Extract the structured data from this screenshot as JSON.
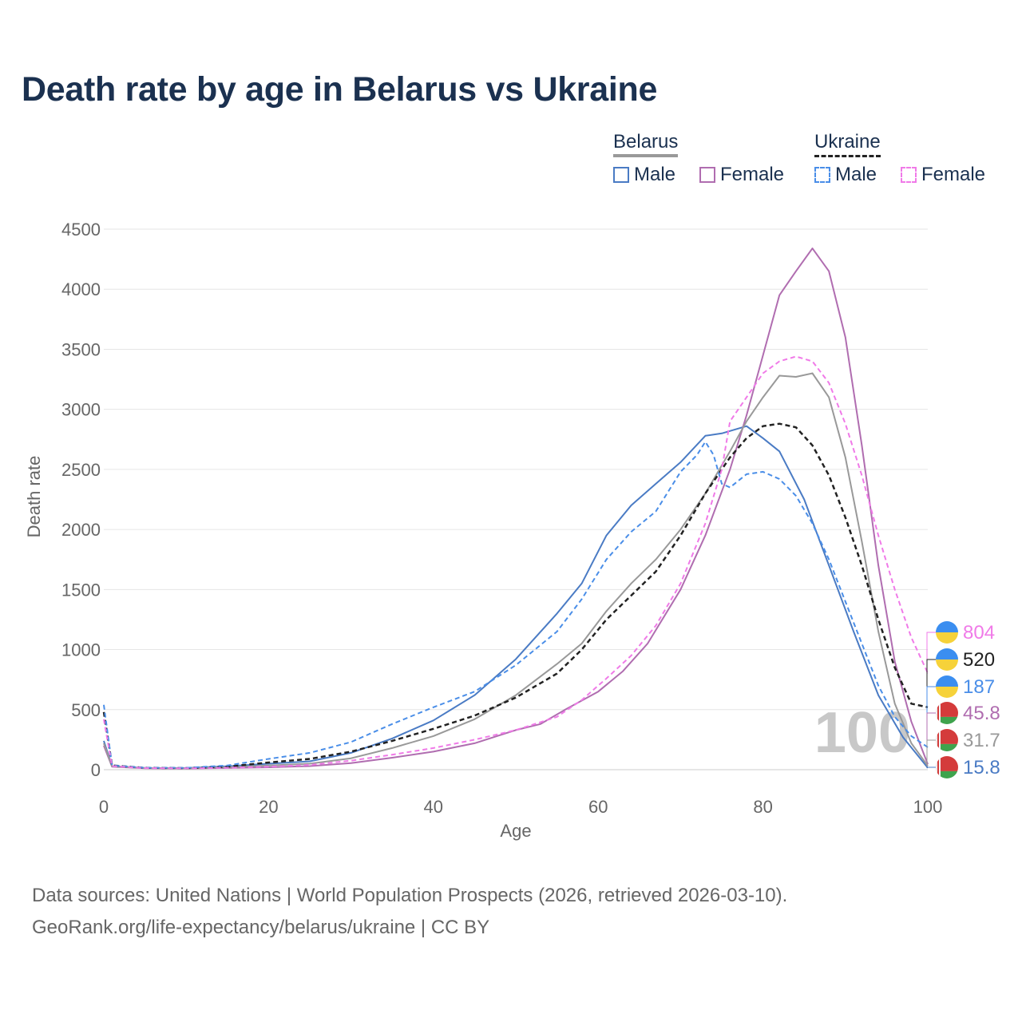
{
  "title": "Death rate by age in Belarus vs Ukraine",
  "legend": {
    "groups": [
      {
        "name": "Belarus",
        "line_color": "#999999",
        "dash": "solid"
      },
      {
        "name": "Ukraine",
        "line_color": "#222222",
        "dash": "dashed"
      }
    ],
    "items": [
      {
        "label": "Male",
        "color": "#4a7bc4",
        "dash": "solid"
      },
      {
        "label": "Female",
        "color": "#b06db0",
        "dash": "solid"
      },
      {
        "label": "Male",
        "color": "#4a8ee8",
        "dash": "dashed"
      },
      {
        "label": "Female",
        "color": "#f07ae8",
        "dash": "dashed"
      }
    ]
  },
  "chart_data": {
    "type": "line",
    "title": "Death rate by age in Belarus vs Ukraine",
    "xlabel": "Age",
    "ylabel": "Death rate",
    "xlim": [
      0,
      100
    ],
    "ylim": [
      0,
      4500
    ],
    "xticks": [
      0,
      20,
      40,
      60,
      80,
      100
    ],
    "yticks": [
      0,
      500,
      1000,
      1500,
      2000,
      2500,
      3000,
      3500,
      4000,
      4500
    ],
    "grid": true,
    "watermark": "100",
    "series": [
      {
        "name": "Belarus Male",
        "color": "#4a7bc4",
        "dash": "solid",
        "points": [
          [
            0,
            240
          ],
          [
            1,
            30
          ],
          [
            5,
            15
          ],
          [
            10,
            14
          ],
          [
            15,
            28
          ],
          [
            20,
            50
          ],
          [
            25,
            70
          ],
          [
            30,
            140
          ],
          [
            35,
            260
          ],
          [
            40,
            410
          ],
          [
            45,
            620
          ],
          [
            50,
            920
          ],
          [
            55,
            1300
          ],
          [
            58,
            1550
          ],
          [
            61,
            1950
          ],
          [
            64,
            2200
          ],
          [
            67,
            2380
          ],
          [
            70,
            2560
          ],
          [
            73,
            2780
          ],
          [
            75,
            2800
          ],
          [
            78,
            2860
          ],
          [
            80,
            2760
          ],
          [
            82,
            2650
          ],
          [
            85,
            2250
          ],
          [
            88,
            1700
          ],
          [
            91,
            1150
          ],
          [
            94,
            620
          ],
          [
            97,
            270
          ],
          [
            100,
            15.8
          ]
        ]
      },
      {
        "name": "Belarus Female",
        "color": "#b06db0",
        "dash": "solid",
        "points": [
          [
            0,
            200
          ],
          [
            1,
            25
          ],
          [
            5,
            12
          ],
          [
            10,
            10
          ],
          [
            15,
            14
          ],
          [
            20,
            20
          ],
          [
            25,
            30
          ],
          [
            30,
            55
          ],
          [
            35,
            100
          ],
          [
            40,
            150
          ],
          [
            45,
            220
          ],
          [
            50,
            330
          ],
          [
            53,
            380
          ],
          [
            56,
            500
          ],
          [
            60,
            650
          ],
          [
            63,
            820
          ],
          [
            66,
            1050
          ],
          [
            70,
            1500
          ],
          [
            73,
            1950
          ],
          [
            76,
            2500
          ],
          [
            78,
            2950
          ],
          [
            80,
            3450
          ],
          [
            82,
            3950
          ],
          [
            84,
            4150
          ],
          [
            86,
            4340
          ],
          [
            88,
            4150
          ],
          [
            90,
            3600
          ],
          [
            92,
            2700
          ],
          [
            94,
            1700
          ],
          [
            96,
            900
          ],
          [
            98,
            400
          ],
          [
            100,
            45.8
          ]
        ]
      },
      {
        "name": "Belarus Total",
        "color": "#999999",
        "dash": "solid",
        "points": [
          [
            0,
            220
          ],
          [
            1,
            28
          ],
          [
            5,
            13
          ],
          [
            10,
            12
          ],
          [
            15,
            20
          ],
          [
            20,
            35
          ],
          [
            25,
            50
          ],
          [
            30,
            95
          ],
          [
            35,
            180
          ],
          [
            40,
            280
          ],
          [
            45,
            420
          ],
          [
            50,
            620
          ],
          [
            55,
            880
          ],
          [
            58,
            1050
          ],
          [
            61,
            1320
          ],
          [
            64,
            1550
          ],
          [
            67,
            1750
          ],
          [
            70,
            2000
          ],
          [
            73,
            2300
          ],
          [
            76,
            2650
          ],
          [
            78,
            2900
          ],
          [
            80,
            3100
          ],
          [
            82,
            3280
          ],
          [
            84,
            3270
          ],
          [
            86,
            3300
          ],
          [
            88,
            3100
          ],
          [
            90,
            2600
          ],
          [
            92,
            1900
          ],
          [
            94,
            1150
          ],
          [
            96,
            550
          ],
          [
            98,
            220
          ],
          [
            100,
            31.7
          ]
        ]
      },
      {
        "name": "Ukraine Total",
        "color": "#222222",
        "dash": "dashed",
        "points": [
          [
            0,
            480
          ],
          [
            1,
            35
          ],
          [
            5,
            15
          ],
          [
            10,
            13
          ],
          [
            15,
            25
          ],
          [
            20,
            60
          ],
          [
            25,
            90
          ],
          [
            30,
            150
          ],
          [
            35,
            240
          ],
          [
            40,
            340
          ],
          [
            45,
            450
          ],
          [
            50,
            600
          ],
          [
            55,
            800
          ],
          [
            58,
            1000
          ],
          [
            61,
            1250
          ],
          [
            64,
            1450
          ],
          [
            67,
            1650
          ],
          [
            70,
            1950
          ],
          [
            73,
            2300
          ],
          [
            76,
            2600
          ],
          [
            78,
            2760
          ],
          [
            80,
            2860
          ],
          [
            82,
            2880
          ],
          [
            84,
            2850
          ],
          [
            86,
            2700
          ],
          [
            88,
            2450
          ],
          [
            90,
            2100
          ],
          [
            92,
            1700
          ],
          [
            94,
            1250
          ],
          [
            96,
            850
          ],
          [
            98,
            550
          ],
          [
            100,
            520
          ]
        ]
      },
      {
        "name": "Ukraine Male",
        "color": "#4a8ee8",
        "dash": "dashed",
        "points": [
          [
            0,
            540
          ],
          [
            1,
            35
          ],
          [
            5,
            16
          ],
          [
            10,
            15
          ],
          [
            15,
            35
          ],
          [
            20,
            90
          ],
          [
            25,
            140
          ],
          [
            30,
            230
          ],
          [
            35,
            380
          ],
          [
            40,
            520
          ],
          [
            45,
            650
          ],
          [
            50,
            870
          ],
          [
            55,
            1150
          ],
          [
            58,
            1420
          ],
          [
            61,
            1750
          ],
          [
            64,
            1980
          ],
          [
            67,
            2150
          ],
          [
            70,
            2480
          ],
          [
            72,
            2620
          ],
          [
            73,
            2730
          ],
          [
            74,
            2620
          ],
          [
            75,
            2380
          ],
          [
            76,
            2350
          ],
          [
            78,
            2460
          ],
          [
            80,
            2480
          ],
          [
            82,
            2420
          ],
          [
            84,
            2280
          ],
          [
            86,
            2050
          ],
          [
            88,
            1750
          ],
          [
            90,
            1400
          ],
          [
            92,
            1050
          ],
          [
            94,
            700
          ],
          [
            96,
            440
          ],
          [
            98,
            280
          ],
          [
            100,
            187
          ]
        ]
      },
      {
        "name": "Ukraine Female",
        "color": "#f07ae8",
        "dash": "dashed",
        "points": [
          [
            0,
            420
          ],
          [
            1,
            30
          ],
          [
            5,
            13
          ],
          [
            10,
            11
          ],
          [
            15,
            16
          ],
          [
            20,
            25
          ],
          [
            25,
            40
          ],
          [
            30,
            75
          ],
          [
            35,
            125
          ],
          [
            40,
            180
          ],
          [
            45,
            250
          ],
          [
            50,
            330
          ],
          [
            55,
            440
          ],
          [
            58,
            580
          ],
          [
            61,
            760
          ],
          [
            64,
            950
          ],
          [
            67,
            1200
          ],
          [
            70,
            1550
          ],
          [
            73,
            2050
          ],
          [
            75,
            2500
          ],
          [
            76,
            2900
          ],
          [
            78,
            3100
          ],
          [
            80,
            3300
          ],
          [
            82,
            3400
          ],
          [
            84,
            3440
          ],
          [
            86,
            3400
          ],
          [
            88,
            3220
          ],
          [
            90,
            2880
          ],
          [
            92,
            2450
          ],
          [
            94,
            1950
          ],
          [
            96,
            1500
          ],
          [
            98,
            1100
          ],
          [
            100,
            804
          ]
        ]
      }
    ],
    "end_labels": [
      {
        "value": "804",
        "color": "#f07ae8",
        "flag": "ukraine"
      },
      {
        "value": "520",
        "color": "#222222",
        "flag": "ukraine"
      },
      {
        "value": "187",
        "color": "#4a8ee8",
        "flag": "ukraine"
      },
      {
        "value": "45.8",
        "color": "#b06db0",
        "flag": "belarus"
      },
      {
        "value": "31.7",
        "color": "#999999",
        "flag": "belarus"
      },
      {
        "value": "15.8",
        "color": "#4a7bc4",
        "flag": "belarus"
      }
    ]
  },
  "footer": {
    "line1": "Data sources: United Nations | World Population Prospects (2026, retrieved 2026-03-10).",
    "line2": "GeoRank.org/life-expectancy/belarus/ukraine | CC BY"
  }
}
